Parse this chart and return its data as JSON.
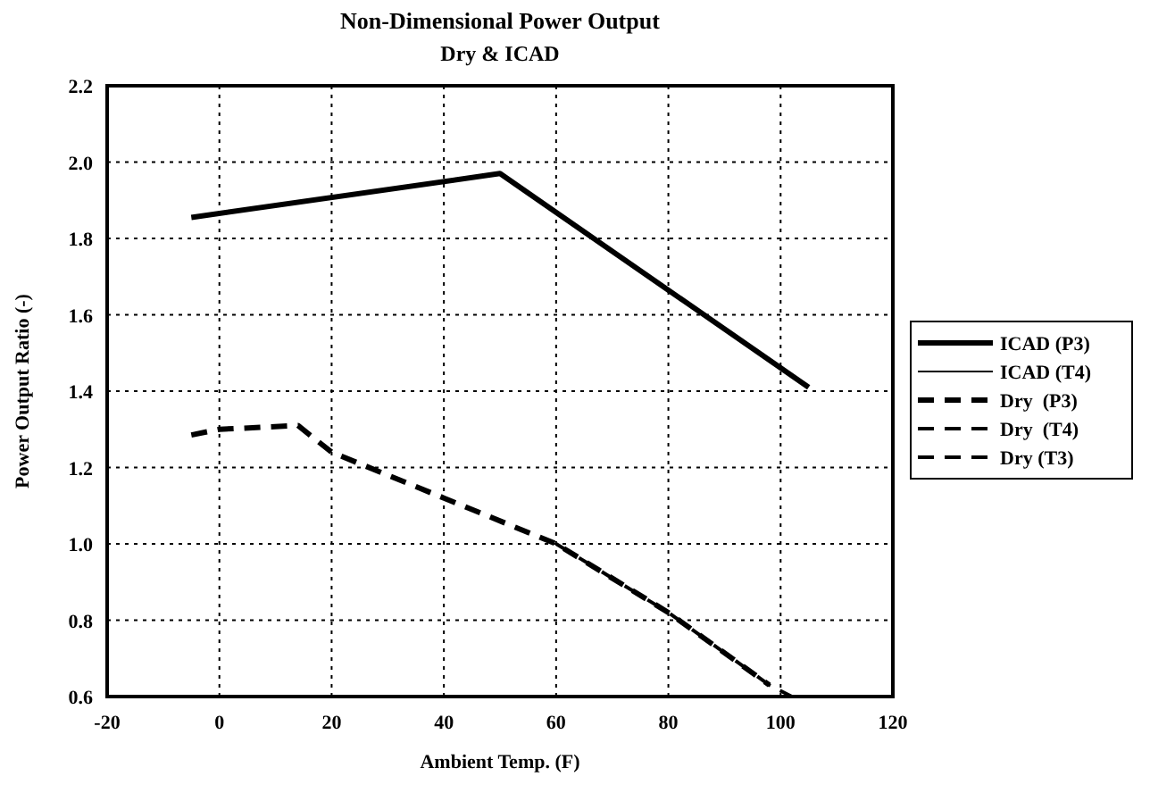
{
  "chart_data": {
    "type": "line",
    "title": "Non-Dimensional Power Output",
    "subtitle": "Dry & ICAD",
    "xlabel": "Ambient Temp. (F)",
    "ylabel": "Power Output Ratio (-)",
    "xlim": [
      -20,
      120
    ],
    "xticks": [
      -20,
      0,
      20,
      40,
      60,
      80,
      100,
      120
    ],
    "ylim": [
      0.6,
      2.2
    ],
    "yticks": [
      {
        "value": 0.6,
        "label": "0.6"
      },
      {
        "value": 0.8,
        "label": "0.8"
      },
      {
        "value": 1.0,
        "label": "1.0"
      },
      {
        "value": 1.2,
        "label": "1.2"
      },
      {
        "value": 1.4,
        "label": "1.4"
      },
      {
        "value": 1.6,
        "label": "1.6"
      },
      {
        "value": 1.8,
        "label": "1.8"
      },
      {
        "value": 2.0,
        "label": "2.0"
      },
      {
        "value": 2.2,
        "label": "2.2"
      }
    ],
    "grid": true,
    "legend": "right",
    "series": [
      {
        "name": "ICAD (P3)",
        "color": "#000000",
        "line_style": "solid",
        "x": [
          -5,
          50,
          105
        ],
        "values": [
          1.855,
          1.97,
          1.41
        ]
      },
      {
        "name": "ICAD (T4)",
        "color": "#000000",
        "line_style": "solid"
      },
      {
        "name": "Dry  (P3)",
        "color": "#000000",
        "line_style": "dashed",
        "x": [
          -5,
          0,
          14,
          20,
          40,
          60,
          80,
          98
        ],
        "values": [
          1.285,
          1.3,
          1.31,
          1.24,
          1.12,
          1.0,
          0.82,
          0.63
        ]
      },
      {
        "name": "Dry  (T4)",
        "color": "#000000",
        "line_style": "dashed"
      },
      {
        "name": "Dry (T3)",
        "color": "#000000",
        "line_style": "dashed",
        "x": [
          60,
          80,
          98,
          102
        ],
        "values": [
          1.0,
          0.82,
          0.63,
          0.6
        ]
      }
    ]
  }
}
